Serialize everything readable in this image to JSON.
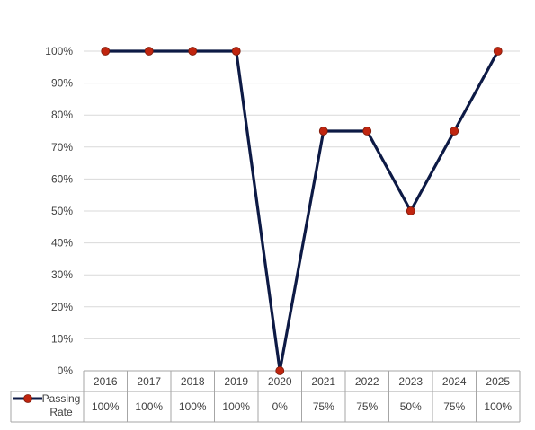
{
  "chart_data": {
    "type": "line",
    "title": "",
    "xlabel": "",
    "ylabel": "",
    "categories": [
      "2016",
      "2017",
      "2018",
      "2019",
      "2020",
      "2021",
      "2022",
      "2023",
      "2024",
      "2025"
    ],
    "ylim": [
      0,
      100
    ],
    "ytick_step": 10,
    "ytick_labels": [
      "0%",
      "10%",
      "20%",
      "30%",
      "40%",
      "50%",
      "60%",
      "70%",
      "80%",
      "90%",
      "100%"
    ],
    "grid": true,
    "legend": "data-table-left",
    "series": [
      {
        "name": "Passing Rate",
        "name_lines": [
          "Passing",
          "Rate"
        ],
        "values": [
          100,
          100,
          100,
          100,
          0,
          75,
          75,
          50,
          75,
          100
        ],
        "value_labels": [
          "100%",
          "100%",
          "100%",
          "100%",
          "0%",
          "75%",
          "75%",
          "50%",
          "75%",
          "100%"
        ],
        "line_color": "#0d1a45",
        "marker_color": "#c0250f"
      }
    ],
    "data_table": true
  }
}
